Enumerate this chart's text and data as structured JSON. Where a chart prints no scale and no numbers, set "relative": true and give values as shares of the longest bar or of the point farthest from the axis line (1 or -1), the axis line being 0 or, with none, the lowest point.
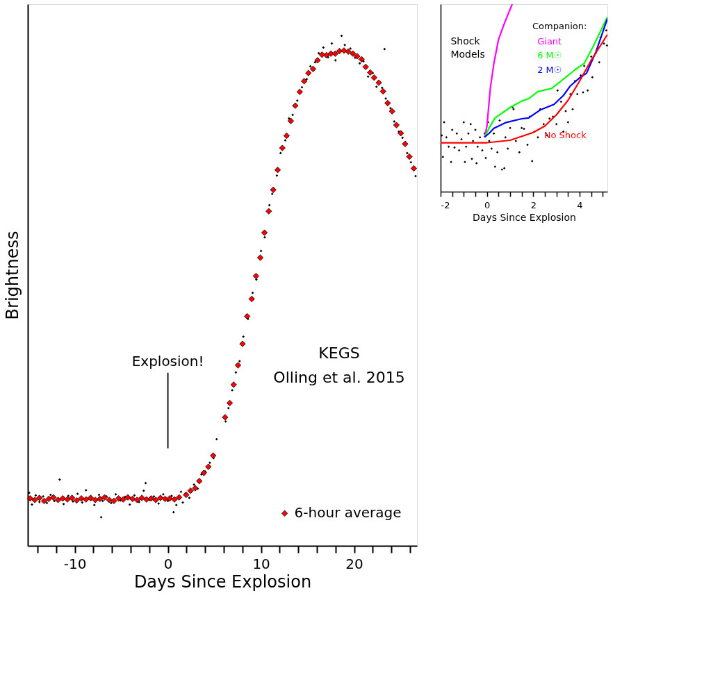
{
  "chart_data": [
    {
      "type": "scatter",
      "xlabel": "Days Since Explosion",
      "ylabel": "Brightness",
      "relative": true,
      "marker": "diamond",
      "legend": "bottom right",
      "grid": false,
      "xlim": [
        -15.05,
        26.75
      ],
      "xticks": [
        {
          "value": -14,
          "label": null
        },
        {
          "value": -12,
          "label": null
        },
        -10,
        {
          "value": -8,
          "label": null
        },
        {
          "value": -6,
          "label": null
        },
        {
          "value": -4,
          "label": null
        },
        {
          "value": -2,
          "label": null
        },
        0,
        {
          "value": 2,
          "label": null
        },
        {
          "value": 4,
          "label": null
        },
        {
          "value": 6,
          "label": null
        },
        {
          "value": 8,
          "label": null
        },
        10,
        {
          "value": 12,
          "label": null
        },
        {
          "value": 14,
          "label": null
        },
        {
          "value": 16,
          "label": null
        },
        {
          "value": 18,
          "label": null
        },
        20,
        {
          "value": 22,
          "label": null
        },
        {
          "value": 24,
          "label": null
        },
        {
          "value": 26,
          "label": null
        }
      ],
      "annotations": [
        "Explosion!",
        "KEGS",
        "Olling et al. 2015"
      ],
      "series": [
        {
          "color": "#000000",
          "x": [
            -14.9,
            -14.6,
            -14.2,
            -13.8,
            -13.4,
            -13.0,
            -12.6,
            -12.2,
            -11.63,
            -11.2,
            -10.7,
            -10.2,
            -9.7,
            -9.2,
            -8.8,
            -8.3,
            -7.9,
            -7.4,
            -7.17,
            -7.0,
            -6.6,
            -6.1,
            -5.6,
            -5.1,
            -4.6,
            -4.1,
            -3.6,
            -3.1,
            -2.6,
            -2.39,
            -2.0,
            -1.5,
            -1.0,
            -0.5,
            0,
            0.4,
            0.61,
            0.9,
            1.4,
            1.6,
            1.9,
            2.3,
            2.8,
            3.2,
            3.6,
            4.0,
            4.5,
            4.9,
            5.23,
            6.2,
            6.5,
            6.9,
            7.3,
            7.7,
            8.1,
            8.6,
            9.1,
            9.5,
            10.0,
            10.4,
            10.9,
            11.2,
            11.7,
            12.1,
            12.6,
            13.0,
            13.4,
            13.9,
            14.4,
            14.9,
            15.3,
            15.8,
            16.2,
            16.7,
            17.2,
            17.6,
            18.0,
            18.65,
            19.0,
            19.6,
            20.1,
            20.6,
            21.0,
            21.5,
            22.0,
            22.4,
            23.0,
            23.27,
            23.4,
            23.9,
            24.3,
            24.8,
            25.2,
            25.7,
            26.1,
            26.6
          ],
          "values": [
            0.104,
            0.081,
            0.099,
            0.086,
            0.097,
            0.084,
            0.1,
            0.088,
            0.13,
            0.082,
            0.098,
            0.087,
            0.102,
            0.085,
            0.109,
            0.09,
            0.08,
            0.1,
            0.056,
            0.088,
            0.097,
            0.084,
            0.101,
            0.089,
            0.096,
            0.081,
            0.099,
            0.086,
            0.108,
            0.123,
            0.09,
            0.097,
            0.083,
            0.101,
            0.088,
            0.098,
            0.066,
            0.08,
            0.106,
            0.085,
            0.103,
            0.094,
            0.12,
            0.112,
            0.14,
            0.146,
            0.163,
            0.172,
            0.209,
            0.244,
            0.27,
            0.305,
            0.34,
            0.362,
            0.41,
            0.445,
            0.496,
            0.522,
            0.578,
            0.605,
            0.668,
            0.69,
            0.726,
            0.77,
            0.795,
            0.838,
            0.845,
            0.873,
            0.899,
            0.915,
            0.94,
            0.948,
            0.966,
            0.977,
            0.958,
            0.985,
            0.952,
            1.0,
            0.982,
            0.975,
            0.957,
            0.946,
            0.95,
            0.92,
            0.927,
            0.9,
            0.898,
            0.974,
            0.877,
            0.858,
            0.832,
            0.812,
            0.8,
            0.77,
            0.752,
            0.725
          ]
        },
        {
          "name": "6-hour average",
          "color": "#ff0000",
          "x": [
            -14.8,
            -14.3,
            -13.8,
            -13.3,
            -12.8,
            -12.3,
            -11.8,
            -11.3,
            -10.8,
            -10.3,
            -9.8,
            -9.3,
            -8.8,
            -8.3,
            -7.8,
            -7.3,
            -6.8,
            -6.3,
            -5.8,
            -5.3,
            -4.8,
            -4.3,
            -3.8,
            -3.3,
            -2.8,
            -2.3,
            -1.8,
            -1.3,
            -0.8,
            -0.3,
            0.2,
            0.7,
            1.2,
            1.96,
            2.43,
            2.93,
            3.37,
            3.86,
            4.34,
            4.86,
            6.14,
            6.64,
            7.06,
            7.53,
            8.01,
            8.51,
            9.0,
            9.46,
            9.92,
            10.37,
            10.83,
            11.31,
            11.79,
            12.29,
            12.75,
            13.2,
            13.68,
            14.16,
            14.63,
            15.09,
            15.59,
            16.07,
            16.55,
            17.02,
            17.5,
            17.97,
            18.42,
            18.91,
            19.37,
            19.87,
            20.32,
            20.8,
            21.24,
            21.73,
            22.15,
            22.65,
            23.11,
            23.6,
            24.08,
            24.54,
            25.01,
            25.48,
            25.93,
            26.41
          ],
          "values": [
            0.093,
            0.09,
            0.094,
            0.088,
            0.092,
            0.095,
            0.09,
            0.093,
            0.091,
            0.094,
            0.089,
            0.093,
            0.091,
            0.094,
            0.09,
            0.092,
            0.095,
            0.09,
            0.088,
            0.093,
            0.091,
            0.095,
            0.092,
            0.09,
            0.094,
            0.091,
            0.093,
            0.09,
            0.094,
            0.092,
            0.093,
            0.091,
            0.095,
            0.1,
            0.108,
            0.113,
            0.127,
            0.143,
            0.155,
            0.177,
            0.252,
            0.28,
            0.316,
            0.354,
            0.396,
            0.45,
            0.484,
            0.529,
            0.565,
            0.614,
            0.656,
            0.698,
            0.737,
            0.78,
            0.804,
            0.833,
            0.863,
            0.89,
            0.911,
            0.927,
            0.935,
            0.952,
            0.963,
            0.962,
            0.965,
            0.965,
            0.97,
            0.971,
            0.969,
            0.965,
            0.96,
            0.954,
            0.939,
            0.928,
            0.918,
            0.908,
            0.891,
            0.868,
            0.852,
            0.825,
            0.809,
            0.788,
            0.763,
            0.74
          ]
        }
      ]
    },
    {
      "type": "line",
      "xlabel": "Days Since Explosion",
      "relative": true,
      "legend": false,
      "grid": false,
      "xlim": [
        -2,
        5.2
      ],
      "xticks": [
        -2,
        {
          "value": -1.5,
          "label": null
        },
        {
          "value": -1,
          "label": null
        },
        {
          "value": -0.5,
          "label": null
        },
        0,
        {
          "value": 0.5,
          "label": null
        },
        {
          "value": 1,
          "label": null
        },
        {
          "value": 1.5,
          "label": null
        },
        2,
        {
          "value": 2.5,
          "label": null
        },
        {
          "value": 3,
          "label": null
        },
        {
          "value": 3.5,
          "label": null
        },
        4,
        {
          "value": 4.5,
          "label": null
        },
        {
          "value": 5,
          "label": null
        }
      ],
      "annotations": [
        "Shock Models",
        "Companion:"
      ],
      "series": [
        {
          "type": "scatter",
          "marker": "diamond",
          "color": "#000000",
          "x": [
            -1.95,
            -1.9,
            -1.85,
            -1.75,
            -1.65,
            -1.55,
            -1.5,
            -1.4,
            -1.3,
            -1.2,
            -1.1,
            -1.0,
            -0.95,
            -0.9,
            -0.8,
            -0.7,
            -0.65,
            -0.6,
            -0.5,
            -0.45,
            -0.4,
            -0.3,
            -0.2,
            -0.1,
            -0.05,
            0.05,
            0.1,
            0.2,
            0.3,
            0.35,
            0.45,
            0.55,
            0.65,
            0.75,
            0.8,
            0.9,
            1.0,
            1.1,
            1.15,
            1.25,
            1.4,
            1.5,
            1.6,
            1.75,
            1.85,
            1.95,
            2.05,
            2.2,
            2.3,
            2.45,
            2.6,
            2.7,
            2.85,
            3.0,
            3.05,
            3.2,
            3.3,
            3.4,
            3.5,
            3.6,
            3.7,
            3.8,
            3.9,
            4.05,
            4.15,
            4.2,
            4.35,
            4.5,
            4.55,
            4.7,
            4.85,
            4.9,
            5.05,
            5.15,
            5.18
          ],
          "values": [
            0.3,
            0.185,
            0.37,
            0.29,
            0.24,
            0.158,
            0.33,
            0.235,
            0.31,
            0.22,
            0.28,
            0.37,
            0.158,
            0.24,
            0.31,
            0.36,
            0.175,
            0.27,
            0.33,
            0.152,
            0.24,
            0.29,
            0.22,
            0.31,
            0.18,
            0.37,
            0.27,
            0.23,
            0.31,
            0.133,
            0.21,
            0.38,
            0.118,
            0.125,
            0.29,
            0.23,
            0.34,
            0.45,
            0.44,
            0.27,
            0.21,
            0.34,
            0.335,
            0.25,
            0.4,
            0.163,
            0.32,
            0.29,
            0.44,
            0.36,
            0.3,
            0.39,
            0.4,
            0.36,
            0.54,
            0.48,
            0.32,
            0.43,
            0.37,
            0.52,
            0.44,
            0.59,
            0.52,
            0.62,
            0.53,
            0.67,
            0.54,
            0.72,
            0.61,
            0.74,
            0.69,
            0.82,
            0.79,
            0.86,
            0.78
          ]
        },
        {
          "name": "Giant",
          "color": "#ff00ff",
          "x": [
            -0.1,
            0,
            0.15,
            0.3,
            0.5,
            0.75,
            1.09
          ],
          "values": [
            0.291,
            0.35,
            0.556,
            0.684,
            0.812,
            0.897,
            1.0
          ]
        },
        {
          "name": "6 M☉",
          "color": "#00ff00",
          "x": [
            -0.1,
            0.1,
            0.35,
            1.0,
            1.5,
            1.8,
            2.2,
            2.8,
            3.2,
            3.8,
            4.2,
            4.6,
            5.2
          ],
          "values": [
            0.291,
            0.342,
            0.393,
            0.449,
            0.483,
            0.496,
            0.534,
            0.551,
            0.59,
            0.65,
            0.684,
            0.778,
            0.932
          ]
        },
        {
          "name": "2 M☉",
          "color": "#0000ff",
          "x": [
            -0.1,
            0.1,
            0.3,
            0.8,
            1.5,
            1.8,
            2.3,
            2.9,
            3.3,
            3.6,
            4.0,
            4.3,
            4.7,
            5.2
          ],
          "values": [
            0.291,
            0.312,
            0.338,
            0.368,
            0.389,
            0.393,
            0.436,
            0.466,
            0.513,
            0.564,
            0.607,
            0.632,
            0.744,
            0.923
          ]
        },
        {
          "name": "No Shock",
          "color": "#ff0000",
          "x": [
            -2,
            -1,
            0,
            1,
            2,
            2.5,
            3,
            3.5,
            4,
            4.5,
            5.2
          ],
          "values": [
            0.261,
            0.261,
            0.261,
            0.274,
            0.316,
            0.35,
            0.41,
            0.487,
            0.59,
            0.701,
            0.838
          ]
        }
      ]
    }
  ]
}
